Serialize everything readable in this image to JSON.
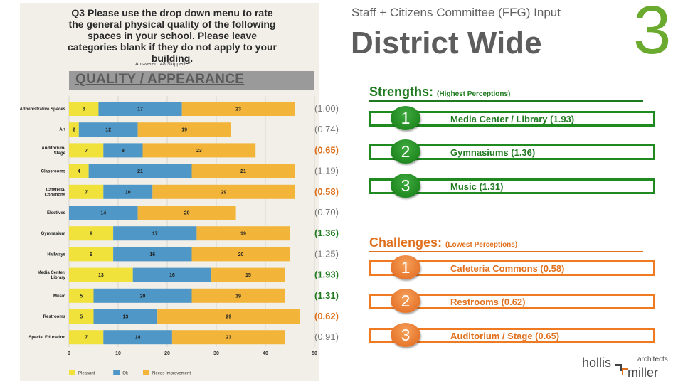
{
  "header": {
    "subtitle": "Staff + Citizens Committee (FFG) Input",
    "title": "District Wide",
    "page_number": "3"
  },
  "scan": {
    "question_number": "Q3",
    "question": "Please use the drop down menu to rate the general physical quality of the following spaces in your school. Please leave categories blank if they do not apply to your building.",
    "answered_skipped": "Answered: 48    Skipped: 7",
    "banner": "QUALITY / APPEARANCE"
  },
  "chart_data": {
    "type": "bar",
    "orientation": "horizontal",
    "stacked": true,
    "categories": [
      "Administrative Spaces",
      "Art",
      "Auditorium/ Stage",
      "Classrooms",
      "Cafeteria/ Commons",
      "Electives",
      "Gymnasium",
      "Hallways",
      "Media Center/ Library",
      "Music",
      "Restrooms",
      "Special Education"
    ],
    "series": [
      {
        "name": "Pleasant",
        "color": "#f0e23a",
        "values": [
          6,
          2,
          7,
          4,
          7,
          null,
          9,
          9,
          13,
          5,
          5,
          7
        ]
      },
      {
        "name": "Ok",
        "color": "#4f97c6",
        "values": [
          17,
          12,
          8,
          21,
          10,
          14,
          17,
          16,
          16,
          20,
          13,
          14
        ]
      },
      {
        "name": "Needs Improvement",
        "color": "#f2b53a",
        "values": [
          23,
          19,
          23,
          21,
          29,
          20,
          19,
          20,
          15,
          19,
          29,
          23
        ]
      }
    ],
    "x_ticks": [
      "0",
      "10",
      "20",
      "30",
      "40",
      "50"
    ],
    "xlim": [
      0,
      50
    ],
    "legend": "bottom",
    "scores": [
      {
        "label": "(1.00)",
        "color": "#777777",
        "bold": false
      },
      {
        "label": "(0.74)",
        "color": "#777777",
        "bold": false
      },
      {
        "label": "(0.65)",
        "color": "#e0701c",
        "bold": true
      },
      {
        "label": "(1.19)",
        "color": "#777777",
        "bold": false
      },
      {
        "label": "(0.58)",
        "color": "#e0701c",
        "bold": true
      },
      {
        "label": "(0.70)",
        "color": "#777777",
        "bold": false
      },
      {
        "label": "(1.36)",
        "color": "#1f7a1f",
        "bold": true
      },
      {
        "label": "(1.25)",
        "color": "#777777",
        "bold": false
      },
      {
        "label": "(1.93)",
        "color": "#1f7a1f",
        "bold": true
      },
      {
        "label": "(1.31)",
        "color": "#1f7a1f",
        "bold": true
      },
      {
        "label": "(0.62)",
        "color": "#e0701c",
        "bold": true
      },
      {
        "label": "(0.91)",
        "color": "#777777",
        "bold": false
      }
    ]
  },
  "strengths": {
    "heading": "Strengths:",
    "subheading": "(Highest Perceptions)",
    "items": [
      {
        "rank": "1",
        "label": "Media Center / Library (1.93)"
      },
      {
        "rank": "2",
        "label": "Gymnasiums (1.36)"
      },
      {
        "rank": "3",
        "label": "Music (1.31)"
      }
    ]
  },
  "challenges": {
    "heading": "Challenges:",
    "subheading": "(Lowest Perceptions)",
    "items": [
      {
        "rank": "1",
        "label": "Cafeteria Commons (0.58)"
      },
      {
        "rank": "2",
        "label": "Restrooms (0.62)"
      },
      {
        "rank": "3",
        "label": "Auditorium / Stage (0.65)"
      }
    ]
  },
  "logo": {
    "name_top": "hollis",
    "name_bottom": "miller",
    "tagline": "architects"
  }
}
